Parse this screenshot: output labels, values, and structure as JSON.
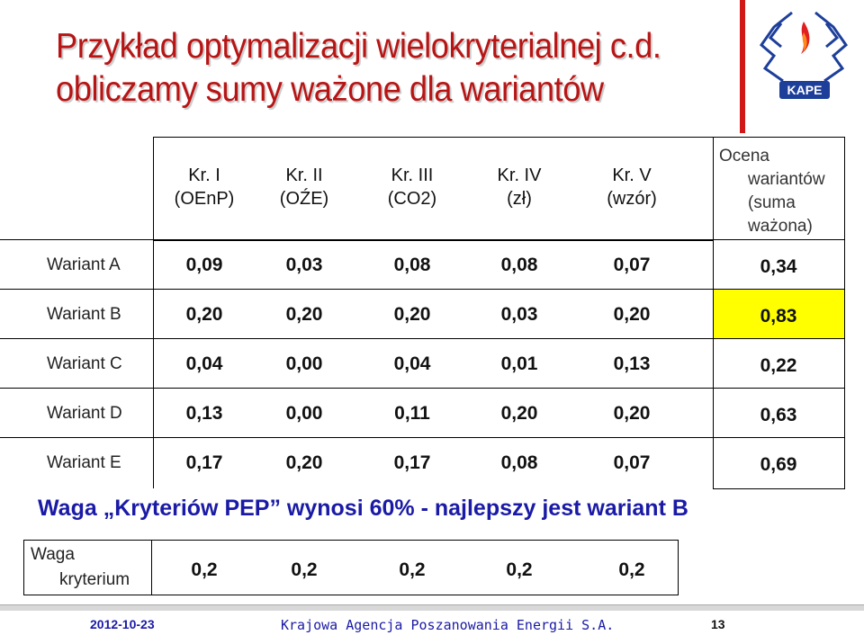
{
  "title": {
    "line1": "Przykład optymalizacji wielokryterialnej c.d.",
    "line2": "obliczamy sumy ważone dla wariantów"
  },
  "logo": {
    "text": "KAPE",
    "icon": "kape-logo-icon"
  },
  "table": {
    "criteria": [
      {
        "name": "Kr. I",
        "sub": "(OEnP)"
      },
      {
        "name": "Kr. II",
        "sub": "(OŹE)"
      },
      {
        "name": "Kr. III",
        "sub": "(CO2)"
      },
      {
        "name": "Kr. IV",
        "sub": "(zł)"
      },
      {
        "name": "Kr. V",
        "sub": "(wzór)"
      }
    ],
    "score_header": {
      "l1": "Ocena",
      "l2": "wariantów",
      "l3": "(suma",
      "l4": "ważona)"
    },
    "rows": [
      {
        "label": "Wariant A",
        "values": [
          "0,09",
          "0,03",
          "0,08",
          "0,08",
          "0,07"
        ],
        "score": "0,34"
      },
      {
        "label": "Wariant B",
        "values": [
          "0,20",
          "0,20",
          "0,20",
          "0,03",
          "0,20"
        ],
        "score": "0,83"
      },
      {
        "label": "Wariant C",
        "values": [
          "0,04",
          "0,00",
          "0,04",
          "0,01",
          "0,13"
        ],
        "score": "0,22"
      },
      {
        "label": "Wariant D",
        "values": [
          "0,13",
          "0,00",
          "0,11",
          "0,20",
          "0,20"
        ],
        "score": "0,63"
      },
      {
        "label": "Wariant E",
        "values": [
          "0,17",
          "0,20",
          "0,17",
          "0,08",
          "0,07"
        ],
        "score": "0,69"
      }
    ],
    "highlight_color": "#ffff00"
  },
  "summary": "Waga „Kryteriów PEP” wynosi 60% - najlepszy jest wariant B",
  "weights": {
    "label_l1": "Waga",
    "label_l2": "kryterium",
    "values": [
      "0,2",
      "0,2",
      "0,2",
      "0,2",
      "0,2"
    ]
  },
  "footer": {
    "date": "2012-10-23",
    "org": "Krajowa Agencja Poszanowania Energii S.A.",
    "page": "13"
  }
}
